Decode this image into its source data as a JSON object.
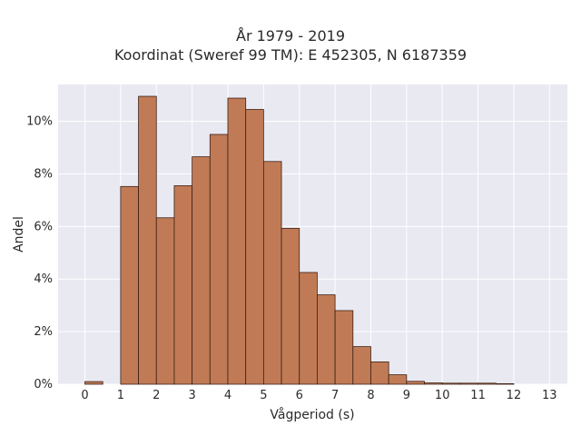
{
  "chart_data": {
    "type": "bar",
    "title": "År 1979 - 2019",
    "subtitle": "Koordinat (Sweref 99 TM): E 452305, N 6187359",
    "xlabel": "Vågperiod (s)",
    "ylabel": "Andel",
    "xlim": [
      -0.75,
      13.5
    ],
    "ylim": [
      0,
      0.114
    ],
    "bin_width": 0.5,
    "x_ticks": [
      0,
      1,
      2,
      3,
      4,
      5,
      6,
      7,
      8,
      9,
      10,
      11,
      12,
      13
    ],
    "y_ticks": [
      0,
      0.02,
      0.04,
      0.06,
      0.08,
      0.1
    ],
    "y_tick_labels": [
      "0%",
      "2%",
      "4%",
      "6%",
      "8%",
      "10%"
    ],
    "bin_starts": [
      0,
      1,
      1.5,
      2,
      2.5,
      3,
      3.5,
      4,
      4.5,
      5,
      5.5,
      6,
      6.5,
      7,
      7.5,
      8,
      8.5,
      9,
      9.5,
      10,
      10.5,
      11,
      11.5
    ],
    "values": [
      0.001,
      0.0752,
      0.1095,
      0.0633,
      0.0755,
      0.0865,
      0.095,
      0.1088,
      0.1045,
      0.0847,
      0.0593,
      0.0425,
      0.034,
      0.028,
      0.0143,
      0.0085,
      0.0036,
      0.0011,
      0.0005,
      0.0004,
      0.0004,
      0.0004,
      0.0002
    ],
    "grid": true,
    "colors": {
      "bar_fill": "#c07b56",
      "bar_edge": "#3d2014",
      "plot_bg": "#e9e9f2",
      "grid": "#ffffff"
    }
  }
}
